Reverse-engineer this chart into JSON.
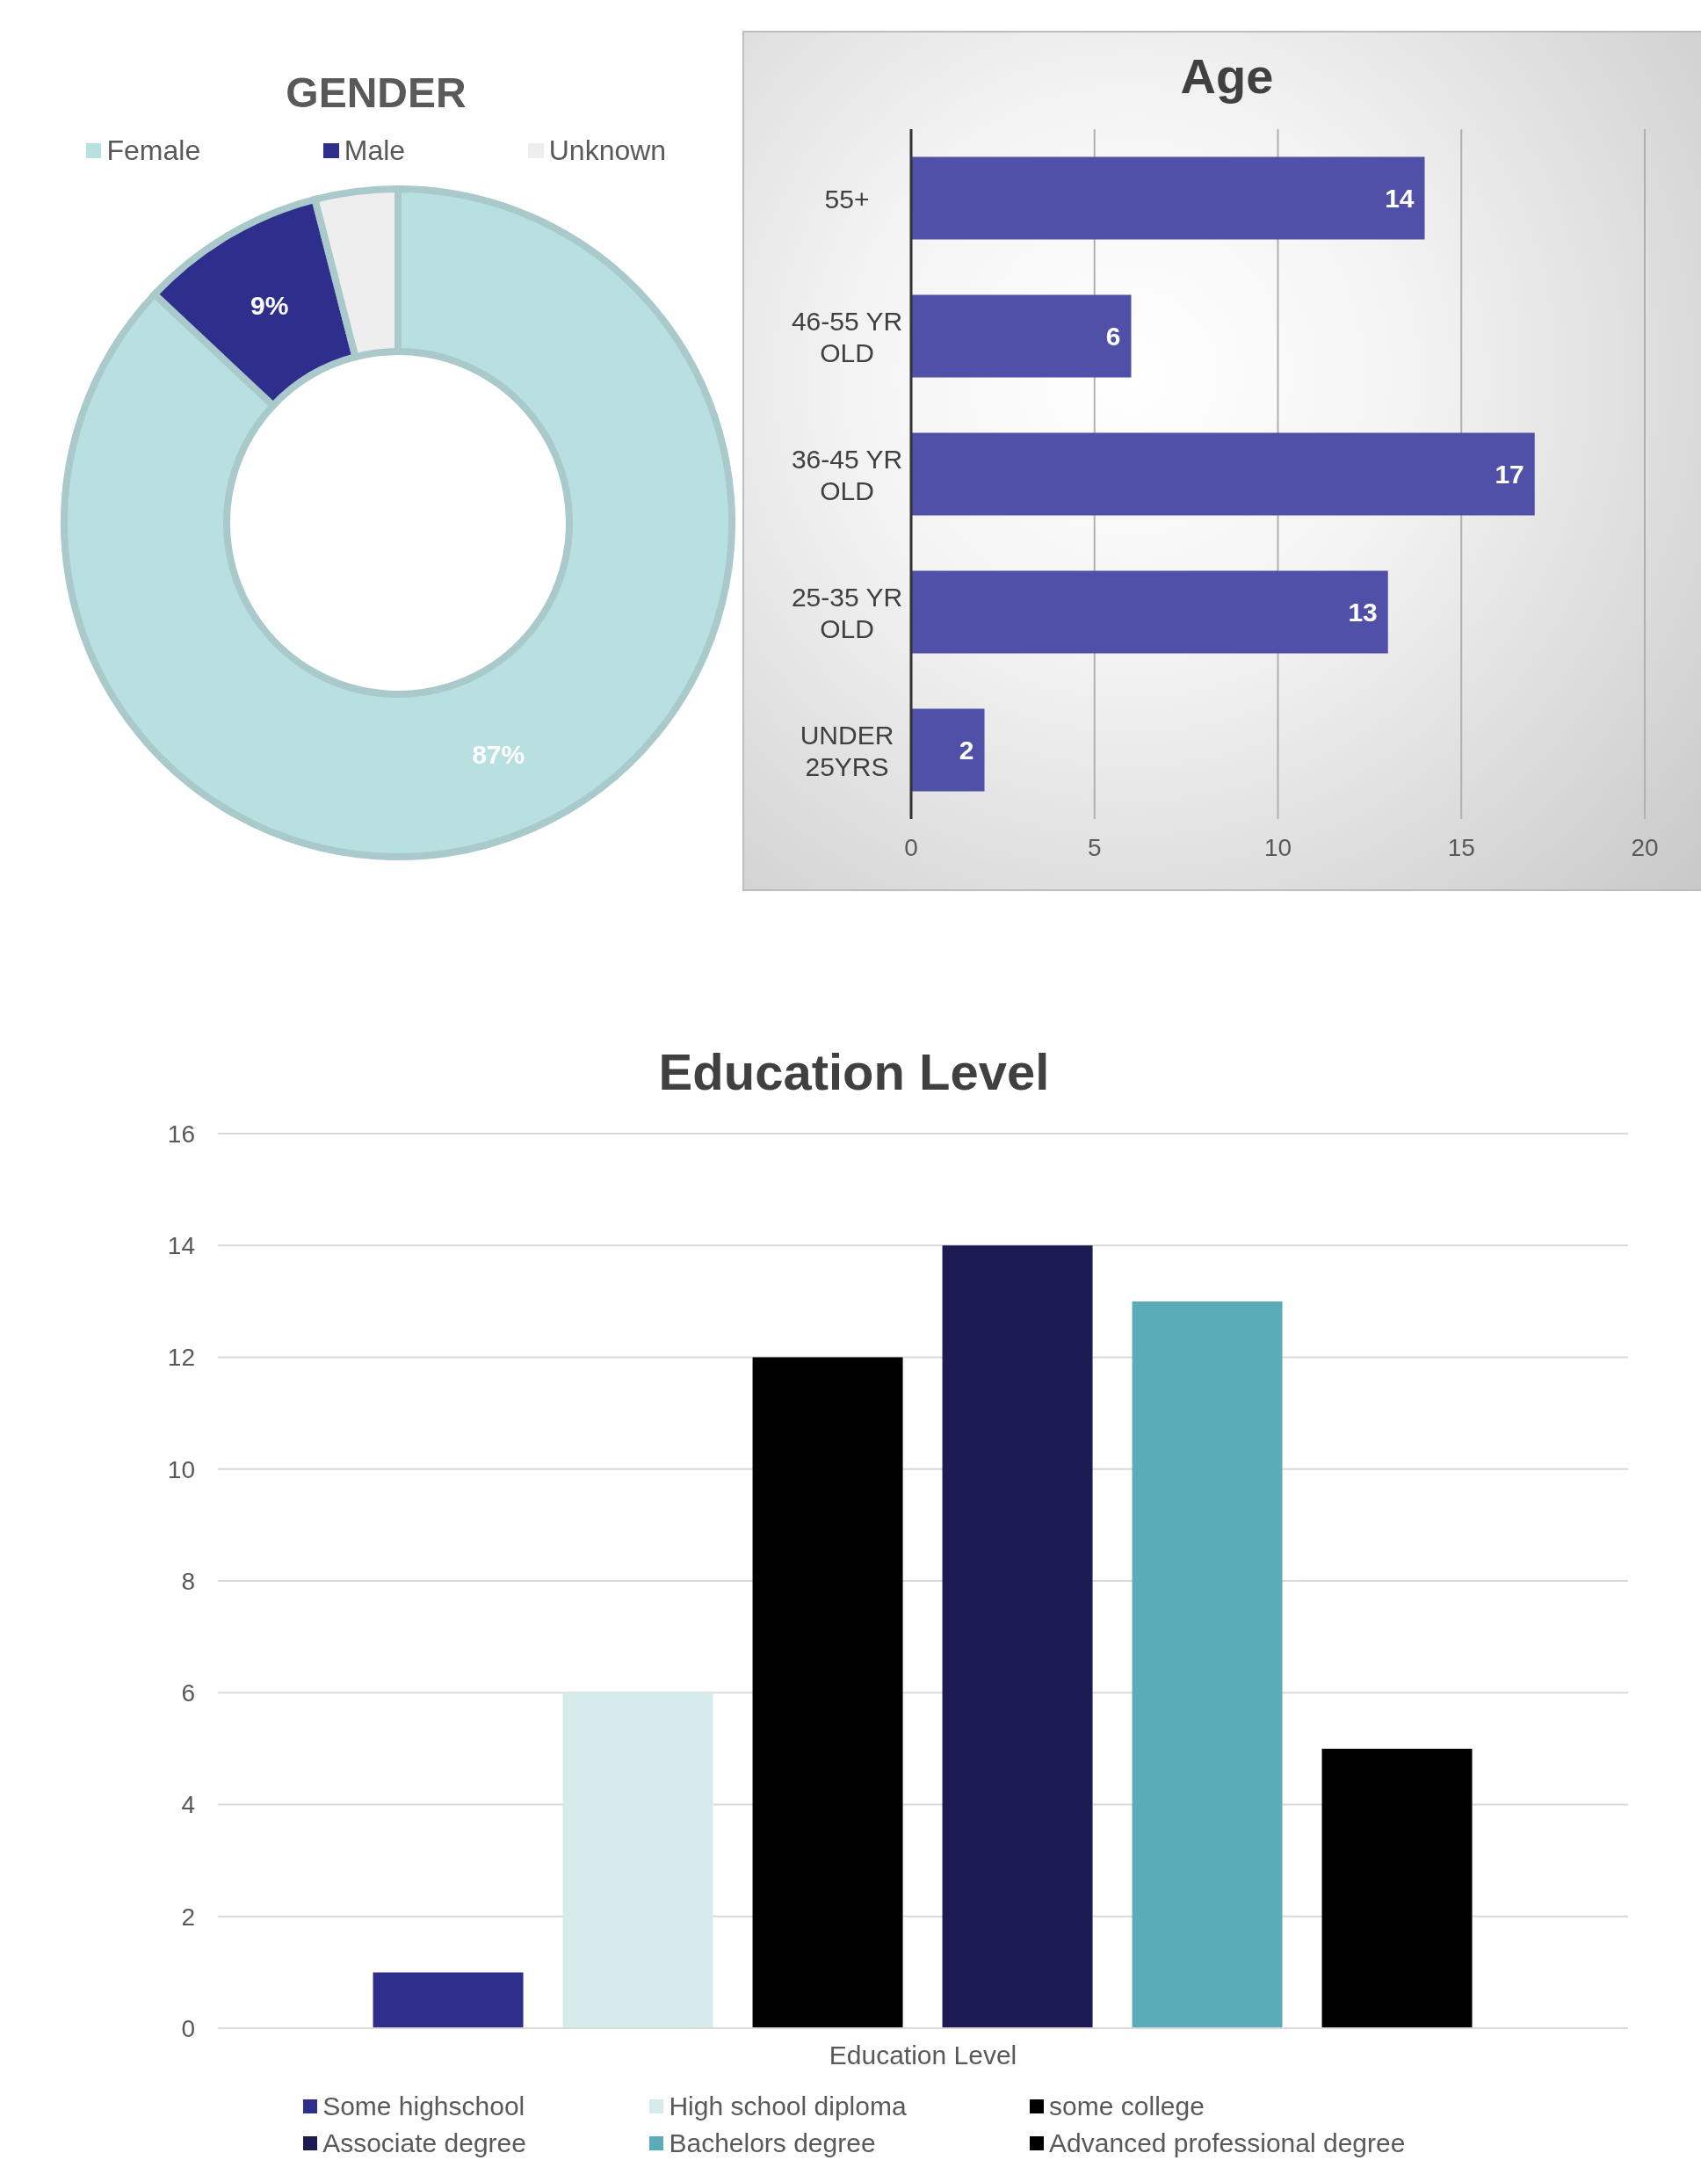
{
  "chart_data": [
    {
      "type": "donut",
      "title": "GENDER",
      "categories": [
        "Female",
        "Male",
        "Unknown"
      ],
      "values": [
        87,
        9,
        4
      ],
      "colors": [
        "#b8e0e0",
        "#2e2e8c",
        "#eeeeee"
      ],
      "value_labels": [
        "87%",
        "9%",
        null
      ],
      "legend": "top"
    },
    {
      "type": "bar",
      "orientation": "horizontal",
      "title": "Age",
      "categories": [
        "55+",
        "46-55 YR OLD",
        "36-45 YR OLD",
        "25-35 YR OLD",
        "UNDER 25YRS"
      ],
      "values": [
        14,
        6,
        17,
        13,
        2
      ],
      "color": "#5050a8",
      "xlim": [
        0,
        20
      ],
      "xticks": [
        0,
        5,
        10,
        15,
        20
      ],
      "grid": "x",
      "data_labels": true
    },
    {
      "type": "bar",
      "title": "Education Level",
      "categories": [
        "Education Level"
      ],
      "series": [
        {
          "name": "Some highschool",
          "color": "#2e2e8c",
          "values": [
            1
          ]
        },
        {
          "name": "High school diploma",
          "color": "#d6ebeb",
          "values": [
            6
          ]
        },
        {
          "name": "some college",
          "color": "#000000",
          "values": [
            12
          ]
        },
        {
          "name": "Associate degree",
          "color": "#1c1a52",
          "values": [
            14
          ]
        },
        {
          "name": "Bachelors degree",
          "color": "#5aadb8",
          "values": [
            13
          ]
        },
        {
          "name": "Advanced professional degree",
          "color": "#000000",
          "values": [
            5
          ]
        }
      ],
      "ylim": [
        0,
        16
      ],
      "yticks": [
        0,
        2,
        4,
        6,
        8,
        10,
        12,
        14,
        16
      ],
      "grid": "y",
      "legend": "bottom"
    }
  ]
}
